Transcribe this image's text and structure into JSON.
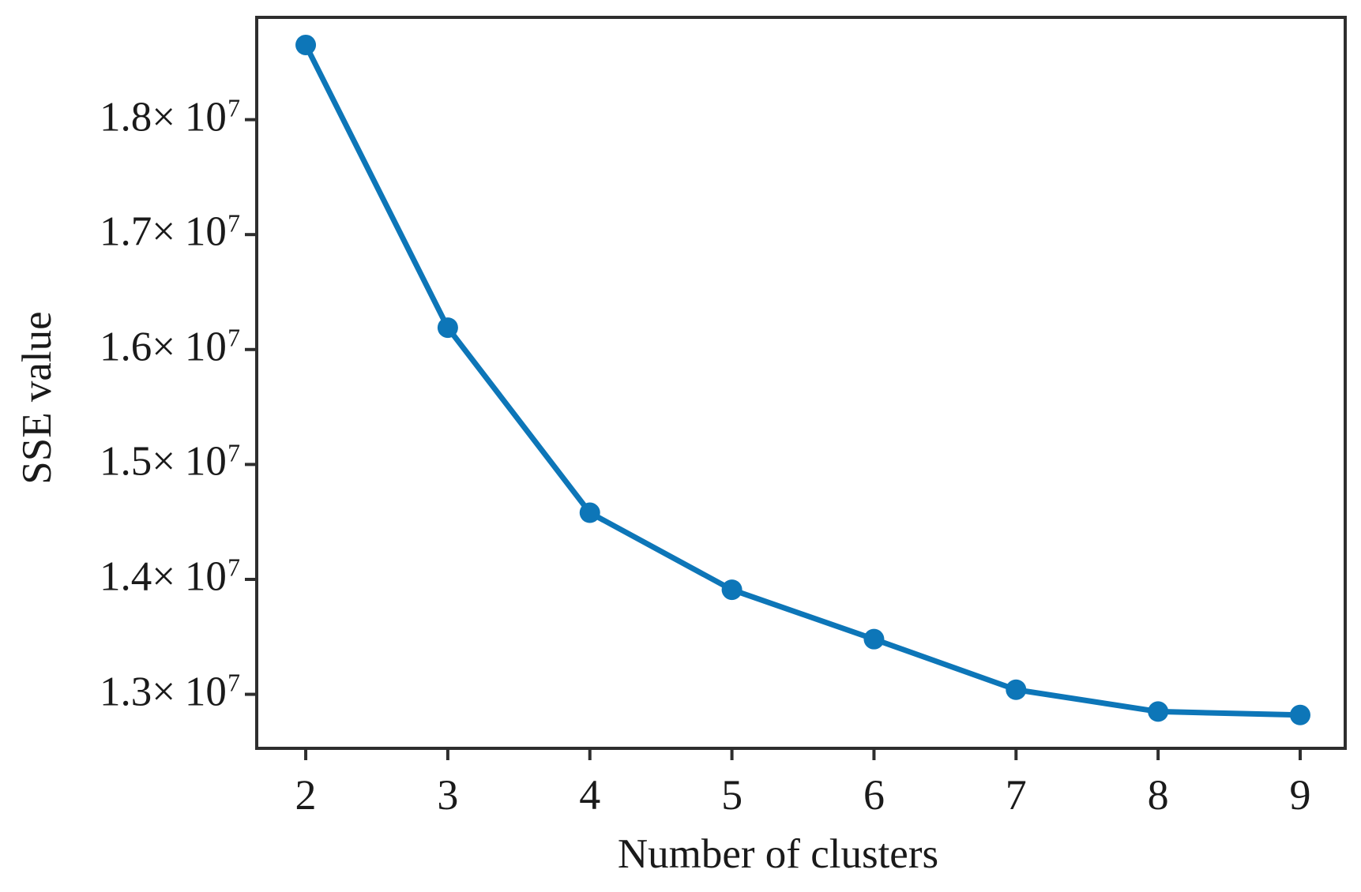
{
  "figure": {
    "background_color": "#ffffff"
  },
  "chart_data": {
    "type": "line",
    "title": "",
    "xlabel": "Number of clusters",
    "ylabel": "SSE value",
    "x": [
      2,
      3,
      4,
      5,
      6,
      7,
      8,
      9
    ],
    "series": [
      {
        "name": "SSE",
        "values": [
          18650000,
          16190000,
          14580000,
          13910000,
          13480000,
          13040000,
          12850000,
          12820000
        ]
      }
    ],
    "x_tick_labels": [
      "2",
      "3",
      "4",
      "5",
      "6",
      "7",
      "8",
      "9"
    ],
    "y_ticks": [
      {
        "value": 18000000,
        "mantissa": "1.8",
        "times": "×",
        "base": "10",
        "exponent": "7"
      },
      {
        "value": 17000000,
        "mantissa": "1.7",
        "times": "×",
        "base": "10",
        "exponent": "7"
      },
      {
        "value": 16000000,
        "mantissa": "1.6",
        "times": "×",
        "base": "10",
        "exponent": "7"
      },
      {
        "value": 15000000,
        "mantissa": "1.5",
        "times": "×",
        "base": "10",
        "exponent": "7"
      },
      {
        "value": 14000000,
        "mantissa": "1.4",
        "times": "×",
        "base": "10",
        "exponent": "7"
      },
      {
        "value": 13000000,
        "mantissa": "1.3",
        "times": "×",
        "base": "10",
        "exponent": "7"
      }
    ],
    "xlim": [
      1.655,
      9.317
    ],
    "ylim": [
      12530000,
      18890000
    ],
    "grid": false,
    "legend": "none",
    "line_color": "#0d76b8",
    "marker_color": "#0d76b8",
    "marker_shape": "circle",
    "axis_color": "#2e2e2e"
  }
}
